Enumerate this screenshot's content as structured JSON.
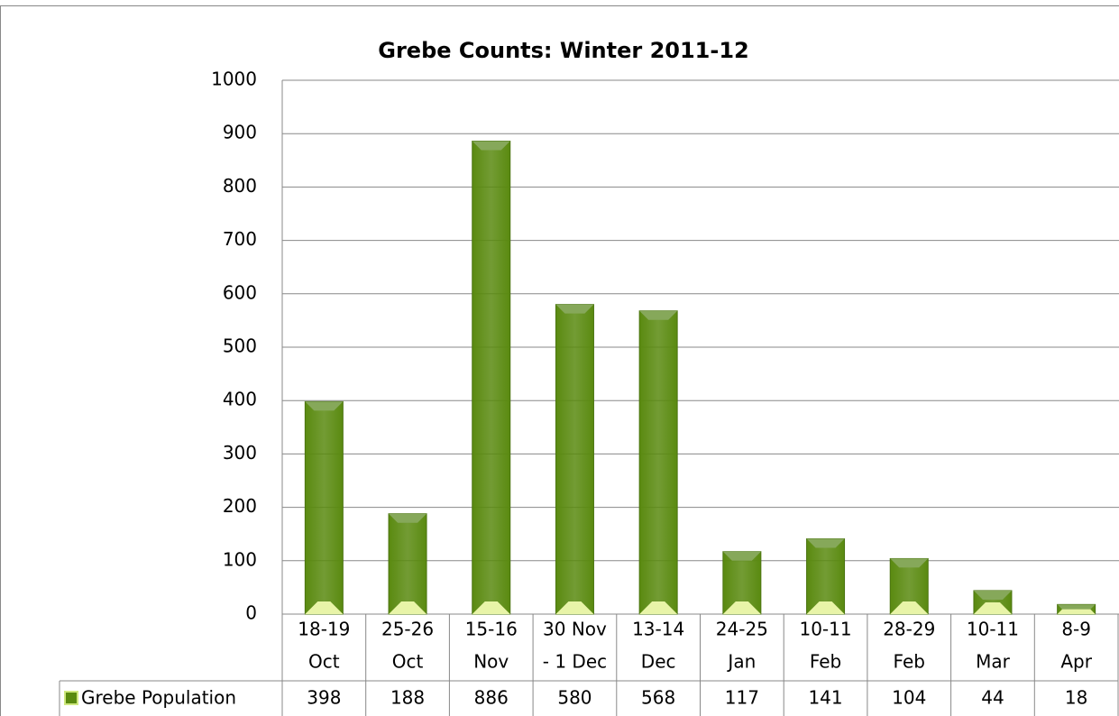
{
  "chart_data": {
    "type": "bar",
    "title": "Grebe Counts: Winter 2011-12",
    "categories": [
      [
        "18-19",
        "Oct"
      ],
      [
        "25-26",
        "Oct"
      ],
      [
        "15-16",
        "Nov"
      ],
      [
        "30 Nov",
        "- 1 Dec"
      ],
      [
        "13-14",
        "Dec"
      ],
      [
        "24-25",
        "Jan"
      ],
      [
        "10-11",
        "Feb"
      ],
      [
        "28-29",
        "Feb"
      ],
      [
        "10-11",
        "Mar"
      ],
      [
        "8-9",
        "Apr"
      ]
    ],
    "series": [
      {
        "name": "Grebe Population",
        "color": "#5a8a10",
        "values": [
          398,
          188,
          886,
          580,
          568,
          117,
          141,
          104,
          44,
          18
        ]
      }
    ],
    "ylim": [
      0,
      1000
    ],
    "yticks": [
      0,
      100,
      200,
      300,
      400,
      500,
      600,
      700,
      800,
      900,
      1000
    ],
    "grid": true,
    "data_table": true
  }
}
